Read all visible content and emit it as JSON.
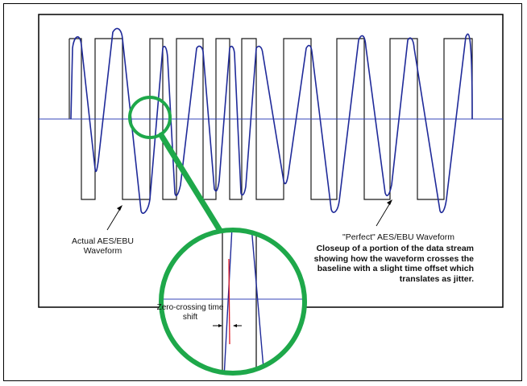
{
  "labels": {
    "actual_waveform": "Actual AES/EBU Waveform",
    "perfect_waveform": "\"Perfect\" AES/EBU Waveform",
    "closeup_caption": "Closeup of a portion of the data stream showing  how the waveform crosses the baseline with a slight time offset which translates as jitter.",
    "zero_crossing": "Zero-crossing time shift"
  },
  "colors": {
    "frame": "#000000",
    "square_wave": "#1a1a1a",
    "actual_waveform": "#1f2a99",
    "baseline": "#3446b8",
    "magnifier_circle": "#1ea84a",
    "jitter_marker": "#e01b24"
  }
}
